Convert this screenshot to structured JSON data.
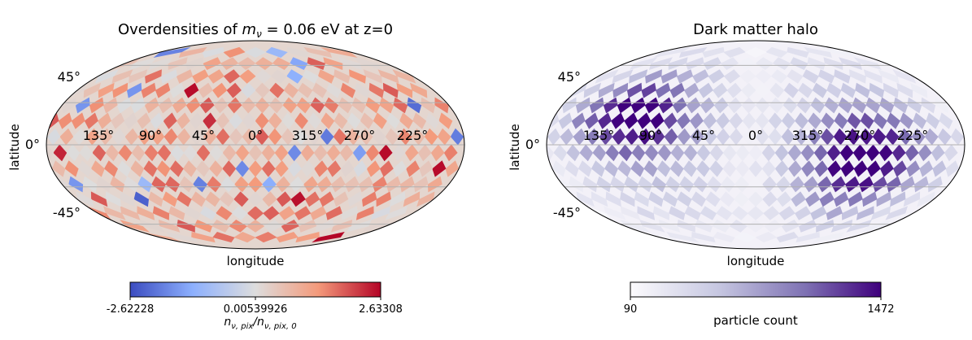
{
  "chart_data": [
    {
      "type": "heatmap",
      "projection": "mollweide",
      "title_prefix": "Overdensities of ",
      "title_math": "m",
      "title_math_sub": "ν",
      "title_suffix": " = 0.06 eV at z=0",
      "xlabel": "longitude",
      "ylabel": "latitude",
      "lon_tick_labels": [
        "135°",
        "90°",
        "45°",
        "0°",
        "315°",
        "270°",
        "225°"
      ],
      "lat_tick_labels": [
        "45°",
        "0°",
        "-45°"
      ],
      "grid": true,
      "colormap": "coolwarm",
      "colorbar": {
        "orientation": "horizontal",
        "min": -2.62228,
        "mid": 0.00539926,
        "max": 2.63308,
        "tick_labels": [
          "-2.62228",
          "0.00539926",
          "2.63308"
        ],
        "label_n": "n",
        "label_sub": "ν, pix",
        "label_slash": "/",
        "label_sub0": "ν, pix, 0"
      }
    },
    {
      "type": "heatmap",
      "projection": "mollweide",
      "title": "Dark matter halo",
      "xlabel": "longitude",
      "ylabel": "latitude",
      "lon_tick_labels": [
        "135°",
        "90°",
        "45°",
        "0°",
        "315°",
        "270°",
        "225°"
      ],
      "lat_tick_labels": [
        "45°",
        "0°",
        "-45°"
      ],
      "grid": true,
      "colormap": "Purples",
      "colorbar": {
        "orientation": "horizontal",
        "min": 90,
        "max": 1472,
        "tick_labels": [
          "90",
          "1472"
        ],
        "label": "particle count"
      }
    }
  ],
  "colors": {
    "coolwarm_low": "#3b4cc0",
    "coolwarm_mid": "#dddddd",
    "coolwarm_high": "#b40426",
    "purples_low": "#fcfbfd",
    "purples_high": "#3f007d",
    "graticule": "#b0b0b0"
  }
}
